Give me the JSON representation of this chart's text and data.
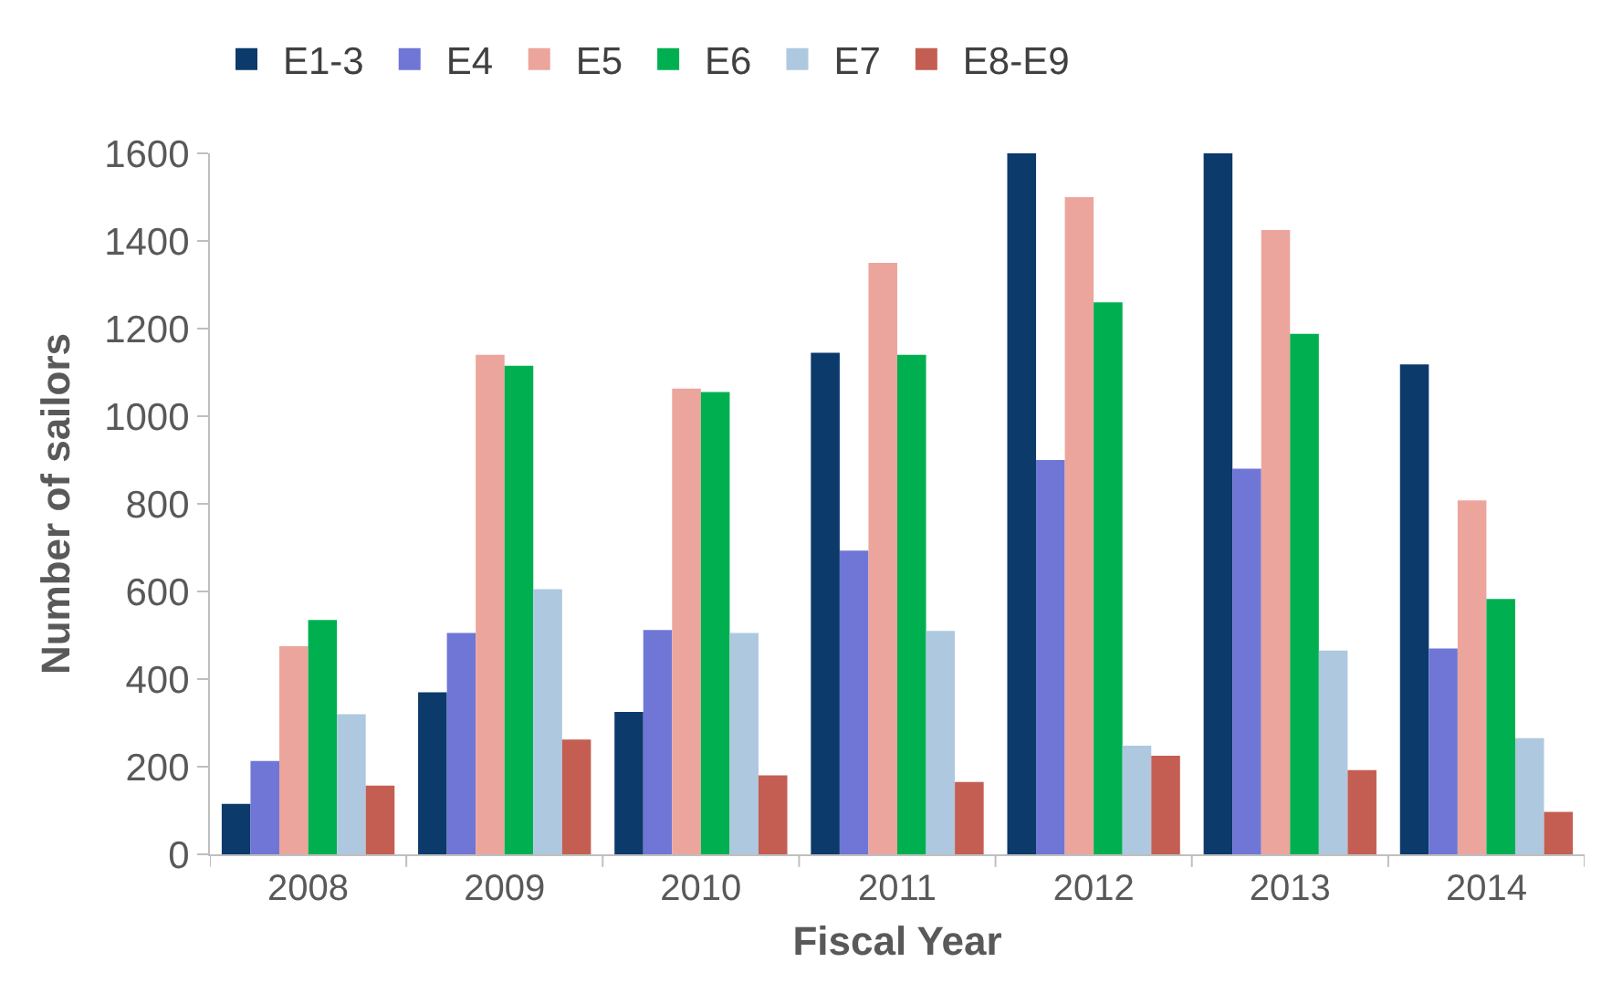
{
  "chart_data": {
    "type": "bar",
    "xlabel": "Fiscal Year",
    "ylabel": "Number of sailors",
    "categories": [
      "2008",
      "2009",
      "2010",
      "2011",
      "2012",
      "2013",
      "2014"
    ],
    "series": [
      {
        "name": "E1-3",
        "color": "#0b3a6b",
        "values": [
          115,
          370,
          325,
          1145,
          1600,
          1600,
          1118
        ]
      },
      {
        "name": "E4",
        "color": "#6f76d6",
        "values": [
          213,
          505,
          512,
          693,
          900,
          880,
          470
        ]
      },
      {
        "name": "E5",
        "color": "#eca59c",
        "values": [
          475,
          1140,
          1063,
          1350,
          1500,
          1425,
          808
        ]
      },
      {
        "name": "E6",
        "color": "#00b050",
        "values": [
          535,
          1115,
          1055,
          1140,
          1260,
          1188,
          583
        ]
      },
      {
        "name": "E7",
        "color": "#aec8e0",
        "values": [
          320,
          605,
          505,
          510,
          248,
          465,
          265
        ]
      },
      {
        "name": "E8-E9",
        "color": "#c45e52",
        "values": [
          157,
          262,
          180,
          165,
          225,
          192,
          97
        ]
      }
    ],
    "ylim": [
      0,
      1600
    ],
    "yticks": [
      0,
      200,
      400,
      600,
      800,
      1000,
      1200,
      1400,
      1600
    ],
    "grid": false,
    "legend": "top left"
  }
}
